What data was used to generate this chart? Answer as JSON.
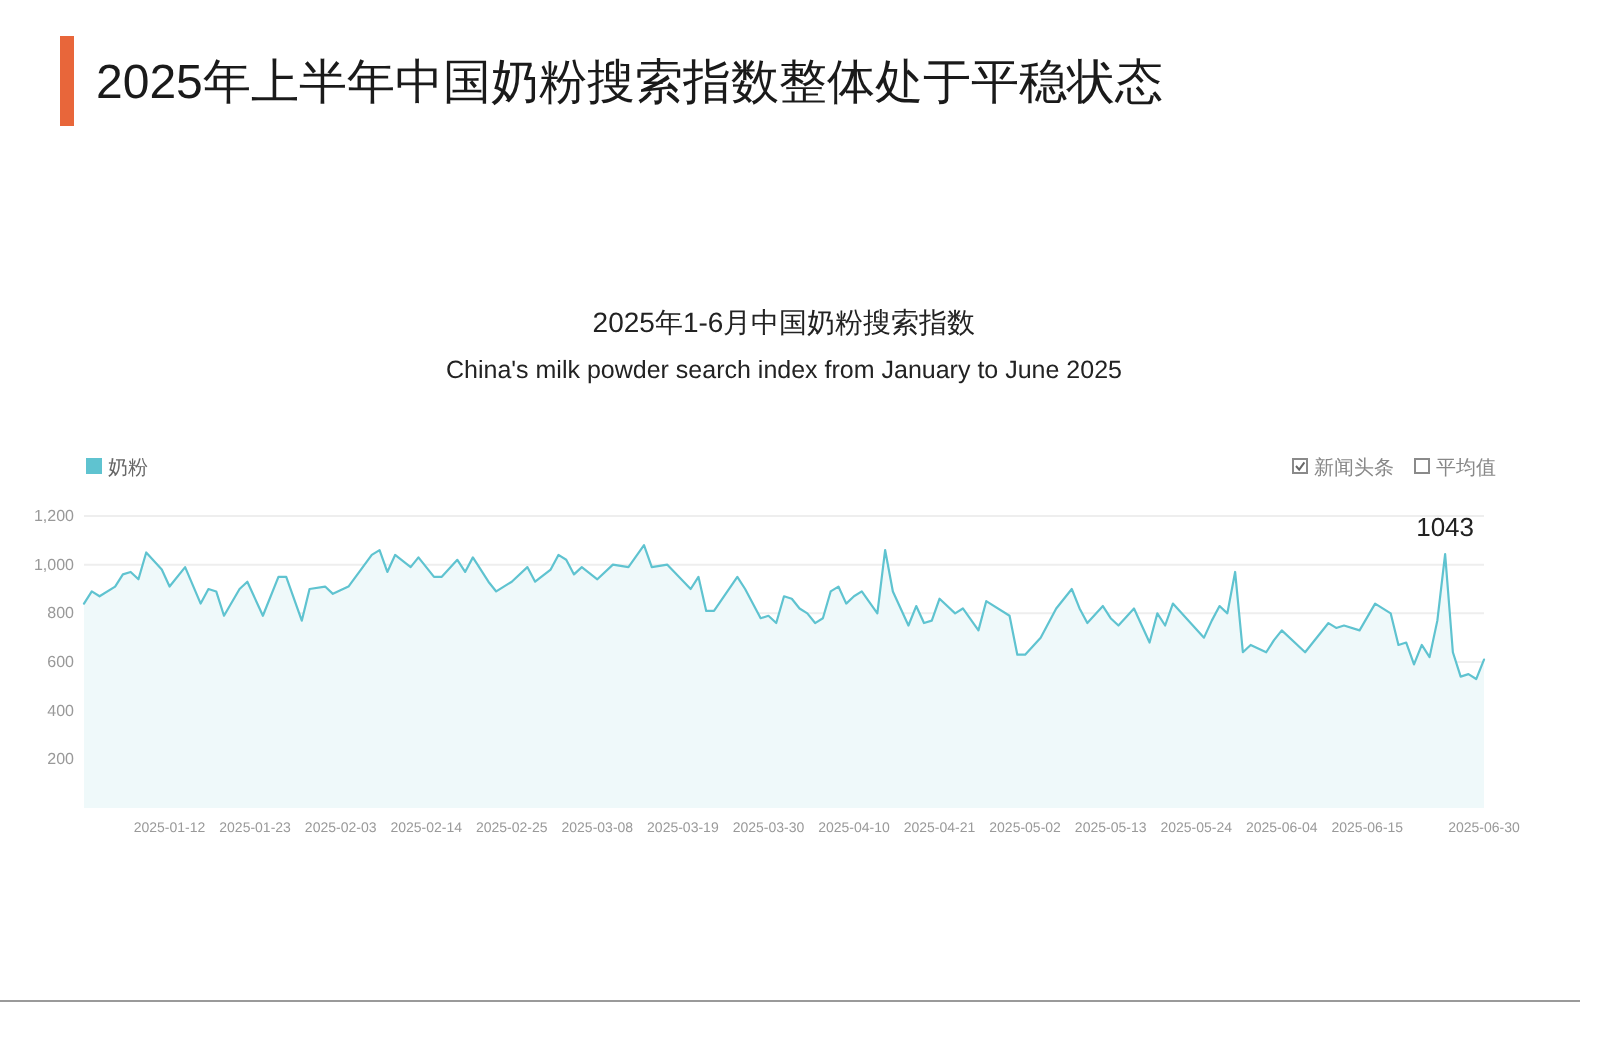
{
  "chart_data": {
    "type": "area",
    "title": "2025年上半年中国奶粉搜索指数整体处于平稳状态",
    "subtitle": "2025年1-6月中国奶粉搜索指数",
    "annotations": [
      "China's milk powder search index from January to June 2025",
      "新闻头条",
      "平均值",
      {
        "text": "1043",
        "x": "2025-06-25",
        "y": 1043
      }
    ],
    "x": [
      "2025-01-01",
      "2025-01-02",
      "2025-01-03",
      "2025-01-05",
      "2025-01-06",
      "2025-01-07",
      "2025-01-08",
      "2025-01-09",
      "2025-01-11",
      "2025-01-12",
      "2025-01-14",
      "2025-01-16",
      "2025-01-17",
      "2025-01-18",
      "2025-01-19",
      "2025-01-21",
      "2025-01-22",
      "2025-01-24",
      "2025-01-26",
      "2025-01-27",
      "2025-01-29",
      "2025-01-30",
      "2025-02-01",
      "2025-02-02",
      "2025-02-04",
      "2025-02-07",
      "2025-02-08",
      "2025-02-09",
      "2025-02-10",
      "2025-02-12",
      "2025-02-13",
      "2025-02-15",
      "2025-02-16",
      "2025-02-18",
      "2025-02-19",
      "2025-02-20",
      "2025-02-22",
      "2025-02-23",
      "2025-02-25",
      "2025-02-27",
      "2025-02-28",
      "2025-03-02",
      "2025-03-03",
      "2025-03-04",
      "2025-03-05",
      "2025-03-06",
      "2025-03-08",
      "2025-03-10",
      "2025-03-12",
      "2025-03-14",
      "2025-03-15",
      "2025-03-17",
      "2025-03-20",
      "2025-03-21",
      "2025-03-22",
      "2025-03-23",
      "2025-03-26",
      "2025-03-27",
      "2025-03-29",
      "2025-03-30",
      "2025-03-31",
      "2025-04-01",
      "2025-04-02",
      "2025-04-03",
      "2025-04-04",
      "2025-04-05",
      "2025-04-06",
      "2025-04-07",
      "2025-04-08",
      "2025-04-09",
      "2025-04-10",
      "2025-04-11",
      "2025-04-13",
      "2025-04-14",
      "2025-04-15",
      "2025-04-17",
      "2025-04-18",
      "2025-04-19",
      "2025-04-20",
      "2025-04-21",
      "2025-04-23",
      "2025-04-24",
      "2025-04-26",
      "2025-04-27",
      "2025-04-30",
      "2025-05-01",
      "2025-05-02",
      "2025-05-04",
      "2025-05-06",
      "2025-05-08",
      "2025-05-09",
      "2025-05-10",
      "2025-05-12",
      "2025-05-13",
      "2025-05-14",
      "2025-05-16",
      "2025-05-17",
      "2025-05-18",
      "2025-05-19",
      "2025-05-20",
      "2025-05-21",
      "2025-05-25",
      "2025-05-26",
      "2025-05-27",
      "2025-05-28",
      "2025-05-29",
      "2025-05-30",
      "2025-05-31",
      "2025-06-02",
      "2025-06-03",
      "2025-06-04",
      "2025-06-07",
      "2025-06-08",
      "2025-06-10",
      "2025-06-11",
      "2025-06-12",
      "2025-06-14",
      "2025-06-16",
      "2025-06-18",
      "2025-06-19",
      "2025-06-20",
      "2025-06-21",
      "2025-06-22",
      "2025-06-23",
      "2025-06-24",
      "2025-06-25",
      "2025-06-26",
      "2025-06-27",
      "2025-06-28",
      "2025-06-29",
      "2025-06-30"
    ],
    "series": [
      {
        "name": "奶粉",
        "color": "#5fc3d0",
        "values": [
          840,
          890,
          870,
          910,
          960,
          970,
          940,
          1050,
          980,
          910,
          990,
          840,
          900,
          890,
          790,
          900,
          930,
          790,
          950,
          950,
          770,
          900,
          910,
          880,
          910,
          1040,
          1060,
          970,
          1040,
          990,
          1030,
          950,
          950,
          1020,
          970,
          1030,
          930,
          890,
          930,
          990,
          930,
          980,
          1040,
          1020,
          960,
          990,
          940,
          1000,
          990,
          1080,
          990,
          1000,
          900,
          950,
          810,
          810,
          950,
          900,
          780,
          790,
          760,
          870,
          860,
          820,
          800,
          760,
          780,
          890,
          910,
          840,
          870,
          890,
          800,
          1060,
          890,
          750,
          830,
          760,
          770,
          860,
          800,
          820,
          730,
          850,
          790,
          630,
          630,
          700,
          820,
          900,
          820,
          760,
          830,
          780,
          750,
          820,
          750,
          680,
          800,
          750,
          840,
          700,
          770,
          830,
          800,
          970,
          640,
          670,
          640,
          690,
          730,
          640,
          680,
          760,
          740,
          750,
          730,
          840,
          800,
          670,
          680,
          590,
          670,
          620,
          770,
          1043,
          640,
          540,
          550,
          530,
          610
        ]
      }
    ],
    "xlim": [
      "2025-01-01",
      "2025-06-30"
    ],
    "xticks": [
      "2025-01-12",
      "2025-01-23",
      "2025-02-03",
      "2025-02-14",
      "2025-02-25",
      "2025-03-08",
      "2025-03-19",
      "2025-03-30",
      "2025-04-10",
      "2025-04-21",
      "2025-05-02",
      "2025-05-13",
      "2025-05-24",
      "2025-06-04",
      "2025-06-15",
      "2025-06-30"
    ],
    "ylim": [
      0,
      1200
    ],
    "yticks": [
      200,
      400,
      600,
      800,
      {
        "value": 1000,
        "label": "1,000"
      },
      {
        "value": 1200,
        "label": "1,200"
      }
    ],
    "grid": "y",
    "legend": "top left"
  }
}
